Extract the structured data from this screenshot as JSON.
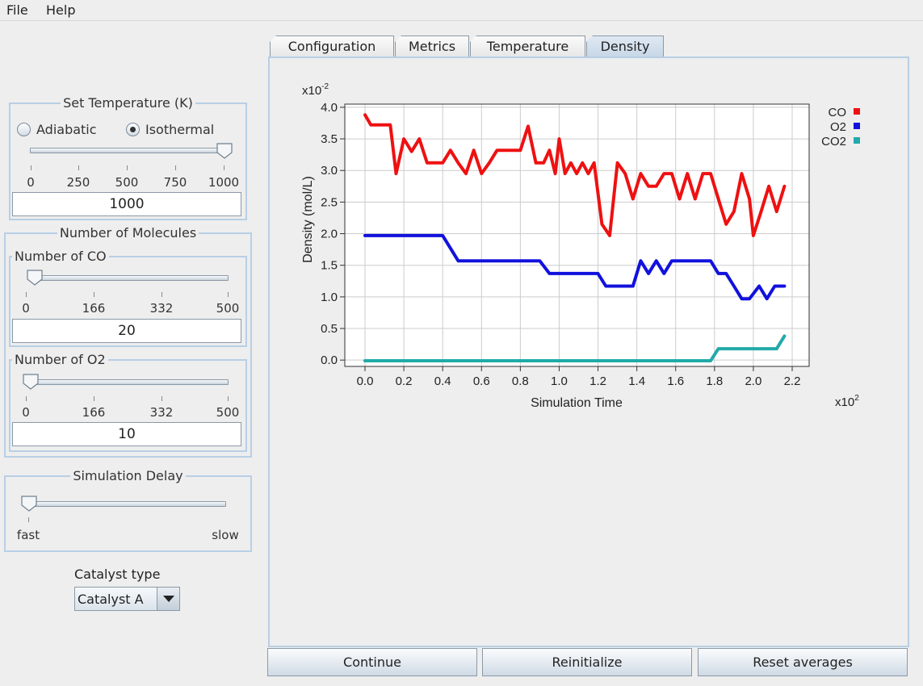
{
  "menu": {
    "file": "File",
    "help": "Help"
  },
  "temperature": {
    "title": "Set Temperature (K)",
    "adiabatic": "Adiabatic",
    "isothermal": "Isothermal",
    "selected": "Isothermal",
    "ticks": [
      "0",
      "250",
      "500",
      "750",
      "1000"
    ],
    "value": "1000"
  },
  "molecules": {
    "title": "Number of Molecules",
    "co": {
      "title": "Number of CO",
      "ticks": [
        "0",
        "166",
        "332",
        "500"
      ],
      "value": "20"
    },
    "o2": {
      "title": "Number of O2",
      "ticks": [
        "0",
        "166",
        "332",
        "500"
      ],
      "value": "10"
    }
  },
  "delay": {
    "title": "Simulation Delay",
    "fast": "fast",
    "slow": "slow"
  },
  "catalyst": {
    "label": "Catalyst type",
    "value": "Catalyst A"
  },
  "tabs": [
    "Configuration",
    "Metrics",
    "Temperature",
    "Density"
  ],
  "active_tab": "Density",
  "buttons": {
    "continue": "Continue",
    "reinitialize": "Reinitialize",
    "reset": "Reset averages"
  },
  "colors": {
    "CO": "#ee1111",
    "O2": "#1111dd",
    "CO2": "#22aaaa",
    "panel_border": "#b8cfe5"
  },
  "chart_data": {
    "type": "line",
    "xlabel": "Simulation Time",
    "ylabel": "Density (mol/L)",
    "x_exponent": "x10",
    "x_exponent_power": "2",
    "y_exponent": "x10",
    "y_exponent_power": "-2",
    "xlim": [
      0,
      2.2
    ],
    "ylim": [
      -0.1,
      4.05
    ],
    "x_ticks": [
      "0.0",
      "0.2",
      "0.4",
      "0.6",
      "0.8",
      "1.0",
      "1.2",
      "1.4",
      "1.6",
      "1.8",
      "2.0",
      "2.2"
    ],
    "y_ticks": [
      "0.0",
      "0.5",
      "1.0",
      "1.5",
      "2.0",
      "2.5",
      "3.0",
      "3.5",
      "4.0"
    ],
    "legend_position": "right",
    "grid": true,
    "series": [
      {
        "name": "CO",
        "points": [
          [
            0.0,
            3.88
          ],
          [
            0.03,
            3.72
          ],
          [
            0.05,
            3.72
          ],
          [
            0.08,
            3.72
          ],
          [
            0.1,
            3.72
          ],
          [
            0.13,
            3.72
          ],
          [
            0.16,
            2.95
          ],
          [
            0.2,
            3.5
          ],
          [
            0.24,
            3.3
          ],
          [
            0.28,
            3.5
          ],
          [
            0.32,
            3.12
          ],
          [
            0.36,
            3.12
          ],
          [
            0.4,
            3.12
          ],
          [
            0.44,
            3.32
          ],
          [
            0.48,
            3.12
          ],
          [
            0.52,
            2.95
          ],
          [
            0.56,
            3.32
          ],
          [
            0.6,
            2.95
          ],
          [
            0.64,
            3.12
          ],
          [
            0.68,
            3.32
          ],
          [
            0.72,
            3.32
          ],
          [
            0.76,
            3.32
          ],
          [
            0.8,
            3.32
          ],
          [
            0.84,
            3.7
          ],
          [
            0.88,
            3.12
          ],
          [
            0.92,
            3.12
          ],
          [
            0.95,
            3.32
          ],
          [
            0.98,
            2.95
          ],
          [
            1.0,
            3.5
          ],
          [
            1.03,
            2.95
          ],
          [
            1.06,
            3.12
          ],
          [
            1.09,
            2.95
          ],
          [
            1.12,
            3.12
          ],
          [
            1.15,
            2.95
          ],
          [
            1.18,
            3.12
          ],
          [
            1.22,
            2.15
          ],
          [
            1.26,
            1.97
          ],
          [
            1.3,
            3.12
          ],
          [
            1.34,
            2.95
          ],
          [
            1.38,
            2.55
          ],
          [
            1.42,
            2.95
          ],
          [
            1.46,
            2.75
          ],
          [
            1.5,
            2.75
          ],
          [
            1.54,
            2.95
          ],
          [
            1.58,
            2.95
          ],
          [
            1.62,
            2.55
          ],
          [
            1.66,
            2.95
          ],
          [
            1.7,
            2.55
          ],
          [
            1.74,
            2.95
          ],
          [
            1.78,
            2.95
          ],
          [
            1.82,
            2.55
          ],
          [
            1.86,
            2.15
          ],
          [
            1.9,
            2.35
          ],
          [
            1.94,
            2.95
          ],
          [
            1.98,
            2.55
          ],
          [
            2.0,
            1.97
          ],
          [
            2.04,
            2.35
          ],
          [
            2.08,
            2.75
          ],
          [
            2.12,
            2.35
          ],
          [
            2.16,
            2.75
          ]
        ]
      },
      {
        "name": "O2",
        "points": [
          [
            0.0,
            1.97
          ],
          [
            0.4,
            1.97
          ],
          [
            0.48,
            1.57
          ],
          [
            0.9,
            1.57
          ],
          [
            0.95,
            1.37
          ],
          [
            1.2,
            1.37
          ],
          [
            1.24,
            1.17
          ],
          [
            1.38,
            1.17
          ],
          [
            1.42,
            1.57
          ],
          [
            1.46,
            1.37
          ],
          [
            1.5,
            1.57
          ],
          [
            1.54,
            1.37
          ],
          [
            1.58,
            1.57
          ],
          [
            1.78,
            1.57
          ],
          [
            1.82,
            1.37
          ],
          [
            1.86,
            1.37
          ],
          [
            1.9,
            1.17
          ],
          [
            1.94,
            0.97
          ],
          [
            1.98,
            0.97
          ],
          [
            2.03,
            1.17
          ],
          [
            2.07,
            0.97
          ],
          [
            2.11,
            1.17
          ],
          [
            2.16,
            1.17
          ]
        ]
      },
      {
        "name": "CO2",
        "points": [
          [
            0.0,
            -0.01
          ],
          [
            1.78,
            -0.01
          ],
          [
            1.82,
            0.18
          ],
          [
            1.86,
            0.18
          ],
          [
            2.12,
            0.18
          ],
          [
            2.16,
            0.38
          ]
        ]
      }
    ]
  }
}
